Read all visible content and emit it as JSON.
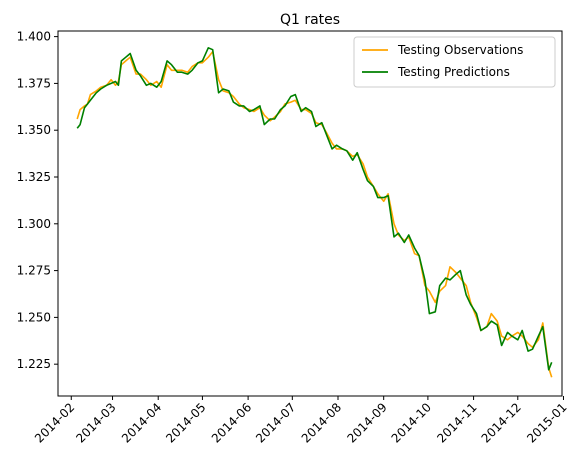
{
  "chart_data": {
    "type": "line",
    "title": "Q1 rates",
    "xlabel": "",
    "ylabel": "",
    "x_is_date": true,
    "xlim": [
      "2014-01-23",
      "2014-12-31"
    ],
    "ylim": [
      1.208,
      1.403
    ],
    "x_ticks": [
      "2014-02-01",
      "2014-03-01",
      "2014-04-01",
      "2014-05-01",
      "2014-06-01",
      "2014-07-01",
      "2014-08-01",
      "2014-09-01",
      "2014-10-01",
      "2014-11-01",
      "2014-12-01",
      "2015-01-01"
    ],
    "x_tick_labels": [
      "2014-02",
      "2014-03",
      "2014-04",
      "2014-05",
      "2014-06",
      "2014-07",
      "2014-08",
      "2014-09",
      "2014-10",
      "2014-11",
      "2014-12",
      "2015-01"
    ],
    "y_ticks": [
      1.225,
      1.25,
      1.275,
      1.3,
      1.325,
      1.35,
      1.375,
      1.4
    ],
    "y_tick_labels": [
      "1.225",
      "1.250",
      "1.275",
      "1.300",
      "1.325",
      "1.350",
      "1.375",
      "1.400"
    ],
    "grid": false,
    "legend_position": "top-right",
    "series": [
      {
        "name": "Testing Observations",
        "color": "#ffa500",
        "x": [
          "2014-02-05",
          "2014-02-07",
          "2014-02-10",
          "2014-02-12",
          "2014-02-14",
          "2014-02-18",
          "2014-02-21",
          "2014-02-25",
          "2014-02-28",
          "2014-03-03",
          "2014-03-05",
          "2014-03-07",
          "2014-03-10",
          "2014-03-13",
          "2014-03-17",
          "2014-03-20",
          "2014-03-24",
          "2014-03-27",
          "2014-03-31",
          "2014-04-03",
          "2014-04-07",
          "2014-04-10",
          "2014-04-14",
          "2014-04-17",
          "2014-04-21",
          "2014-04-24",
          "2014-04-28",
          "2014-05-01",
          "2014-05-05",
          "2014-05-08",
          "2014-05-12",
          "2014-05-15",
          "2014-05-19",
          "2014-05-22",
          "2014-05-26",
          "2014-05-29",
          "2014-06-02",
          "2014-06-05",
          "2014-06-09",
          "2014-06-12",
          "2014-06-16",
          "2014-06-19",
          "2014-06-23",
          "2014-06-26",
          "2014-06-30",
          "2014-07-03",
          "2014-07-07",
          "2014-07-10",
          "2014-07-14",
          "2014-07-17",
          "2014-07-21",
          "2014-07-24",
          "2014-07-28",
          "2014-07-31",
          "2014-08-04",
          "2014-08-07",
          "2014-08-11",
          "2014-08-14",
          "2014-08-18",
          "2014-08-21",
          "2014-08-25",
          "2014-08-28",
          "2014-09-01",
          "2014-09-04",
          "2014-09-08",
          "2014-09-11",
          "2014-09-15",
          "2014-09-18",
          "2014-09-22",
          "2014-09-25",
          "2014-09-29",
          "2014-10-02",
          "2014-10-06",
          "2014-10-09",
          "2014-10-13",
          "2014-10-16",
          "2014-10-20",
          "2014-10-23",
          "2014-10-27",
          "2014-10-30",
          "2014-11-03",
          "2014-11-06",
          "2014-11-10",
          "2014-11-13",
          "2014-11-17",
          "2014-11-20",
          "2014-11-24",
          "2014-11-27",
          "2014-12-01",
          "2014-12-04",
          "2014-12-08",
          "2014-12-11",
          "2014-12-15",
          "2014-12-18",
          "2014-12-22",
          "2014-12-24"
        ],
        "y": [
          1.356,
          1.361,
          1.363,
          1.364,
          1.369,
          1.371,
          1.373,
          1.374,
          1.377,
          1.374,
          1.376,
          1.385,
          1.387,
          1.389,
          1.38,
          1.38,
          1.377,
          1.374,
          1.376,
          1.373,
          1.385,
          1.382,
          1.382,
          1.382,
          1.381,
          1.384,
          1.386,
          1.386,
          1.389,
          1.392,
          1.377,
          1.371,
          1.37,
          1.368,
          1.364,
          1.362,
          1.361,
          1.36,
          1.362,
          1.358,
          1.355,
          1.357,
          1.36,
          1.364,
          1.365,
          1.366,
          1.361,
          1.361,
          1.359,
          1.354,
          1.353,
          1.349,
          1.343,
          1.34,
          1.34,
          1.339,
          1.336,
          1.337,
          1.332,
          1.325,
          1.32,
          1.316,
          1.312,
          1.316,
          1.3,
          1.294,
          1.291,
          1.293,
          1.284,
          1.283,
          1.267,
          1.264,
          1.258,
          1.264,
          1.267,
          1.277,
          1.274,
          1.271,
          1.267,
          1.258,
          1.25,
          1.243,
          1.245,
          1.252,
          1.248,
          1.24,
          1.238,
          1.24,
          1.242,
          1.24,
          1.236,
          1.234,
          1.238,
          1.247,
          1.223,
          1.218
        ]
      },
      {
        "name": "Testing Predictions",
        "color": "#008000",
        "x": [
          "2014-02-05",
          "2014-02-07",
          "2014-02-10",
          "2014-02-12",
          "2014-02-14",
          "2014-02-18",
          "2014-02-21",
          "2014-02-25",
          "2014-02-28",
          "2014-03-03",
          "2014-03-05",
          "2014-03-07",
          "2014-03-10",
          "2014-03-13",
          "2014-03-17",
          "2014-03-20",
          "2014-03-24",
          "2014-03-27",
          "2014-03-31",
          "2014-04-03",
          "2014-04-07",
          "2014-04-10",
          "2014-04-14",
          "2014-04-17",
          "2014-04-21",
          "2014-04-24",
          "2014-04-28",
          "2014-05-01",
          "2014-05-05",
          "2014-05-08",
          "2014-05-12",
          "2014-05-15",
          "2014-05-19",
          "2014-05-22",
          "2014-05-26",
          "2014-05-29",
          "2014-06-02",
          "2014-06-05",
          "2014-06-09",
          "2014-06-12",
          "2014-06-16",
          "2014-06-19",
          "2014-06-23",
          "2014-06-26",
          "2014-06-30",
          "2014-07-03",
          "2014-07-07",
          "2014-07-10",
          "2014-07-14",
          "2014-07-17",
          "2014-07-21",
          "2014-07-24",
          "2014-07-28",
          "2014-07-31",
          "2014-08-04",
          "2014-08-07",
          "2014-08-11",
          "2014-08-14",
          "2014-08-18",
          "2014-08-21",
          "2014-08-25",
          "2014-08-28",
          "2014-09-01",
          "2014-09-04",
          "2014-09-08",
          "2014-09-11",
          "2014-09-15",
          "2014-09-18",
          "2014-09-22",
          "2014-09-25",
          "2014-09-29",
          "2014-10-02",
          "2014-10-06",
          "2014-10-09",
          "2014-10-13",
          "2014-10-16",
          "2014-10-20",
          "2014-10-23",
          "2014-10-27",
          "2014-10-30",
          "2014-11-03",
          "2014-11-06",
          "2014-11-10",
          "2014-11-13",
          "2014-11-17",
          "2014-11-20",
          "2014-11-24",
          "2014-11-27",
          "2014-12-01",
          "2014-12-04",
          "2014-12-08",
          "2014-12-11",
          "2014-12-15",
          "2014-12-18",
          "2014-12-22",
          "2014-12-24"
        ],
        "y": [
          1.351,
          1.353,
          1.362,
          1.364,
          1.366,
          1.37,
          1.372,
          1.374,
          1.375,
          1.376,
          1.374,
          1.387,
          1.389,
          1.391,
          1.382,
          1.379,
          1.374,
          1.375,
          1.373,
          1.376,
          1.387,
          1.385,
          1.381,
          1.381,
          1.38,
          1.382,
          1.386,
          1.387,
          1.394,
          1.393,
          1.37,
          1.372,
          1.371,
          1.365,
          1.363,
          1.363,
          1.36,
          1.361,
          1.363,
          1.353,
          1.356,
          1.356,
          1.361,
          1.363,
          1.368,
          1.369,
          1.36,
          1.362,
          1.36,
          1.352,
          1.354,
          1.348,
          1.34,
          1.342,
          1.34,
          1.339,
          1.334,
          1.338,
          1.329,
          1.323,
          1.32,
          1.314,
          1.314,
          1.315,
          1.293,
          1.295,
          1.29,
          1.294,
          1.287,
          1.283,
          1.27,
          1.252,
          1.253,
          1.267,
          1.271,
          1.27,
          1.273,
          1.275,
          1.262,
          1.257,
          1.252,
          1.243,
          1.245,
          1.248,
          1.246,
          1.235,
          1.242,
          1.24,
          1.238,
          1.243,
          1.232,
          1.233,
          1.24,
          1.245,
          1.222,
          1.226
        ]
      }
    ]
  }
}
